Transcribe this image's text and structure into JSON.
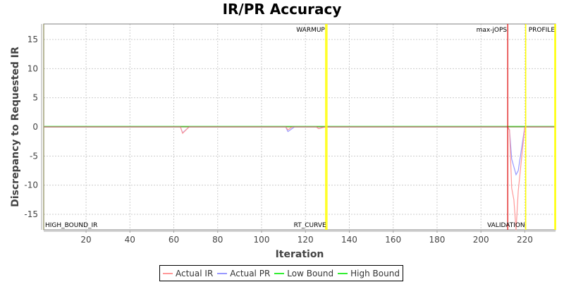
{
  "chart_data": {
    "type": "line",
    "title": "IR/PR Accuracy",
    "xlabel": "Iteration",
    "ylabel": "Discrepancy to Requested IR",
    "xlim": [
      0.7,
      234
    ],
    "ylim": [
      -17.66,
      17.66
    ],
    "x_ticks": [
      20,
      40,
      60,
      80,
      100,
      120,
      140,
      160,
      180,
      200,
      220
    ],
    "y_ticks": [
      -15,
      -10,
      -5,
      0,
      5,
      10,
      15
    ],
    "grid": true,
    "legend_position": "bottom",
    "series": [
      {
        "name": "Actual IR",
        "color": "#ff9999",
        "points": [
          [
            1,
            0
          ],
          [
            63,
            0
          ],
          [
            64,
            -1.1
          ],
          [
            67,
            0
          ],
          [
            111,
            0
          ],
          [
            112,
            -0.5
          ],
          [
            114,
            0
          ],
          [
            125,
            0
          ],
          [
            126,
            -0.3
          ],
          [
            129,
            0
          ],
          [
            212,
            0
          ],
          [
            213,
            -0.5
          ],
          [
            214,
            -10.5
          ],
          [
            215,
            -12.5
          ],
          [
            216,
            -17.7
          ],
          [
            217,
            -11
          ],
          [
            220,
            0
          ],
          [
            234,
            0
          ]
        ]
      },
      {
        "name": "Actual PR",
        "color": "#9999ff",
        "points": [
          [
            1,
            0
          ],
          [
            63,
            0
          ],
          [
            64,
            -1.0
          ],
          [
            67,
            0
          ],
          [
            111,
            0
          ],
          [
            112,
            -0.8
          ],
          [
            115,
            0
          ],
          [
            125,
            0
          ],
          [
            126,
            -0.3
          ],
          [
            129,
            0
          ],
          [
            212,
            0
          ],
          [
            213,
            -0.5
          ],
          [
            214,
            -5.5
          ],
          [
            216,
            -8.2
          ],
          [
            217,
            -7.5
          ],
          [
            220,
            0
          ],
          [
            234,
            0
          ]
        ]
      },
      {
        "name": "Low Bound",
        "color": "#33ee33",
        "points": [
          [
            1,
            0
          ],
          [
            234,
            0
          ]
        ]
      },
      {
        "name": "High Bound",
        "color": "#33ee33",
        "points": [
          [
            1,
            0.1
          ],
          [
            234,
            0.1
          ]
        ]
      }
    ],
    "annotations": [
      {
        "label": "HIGH_BOUND_IR",
        "x": 0.7,
        "position": "bottom",
        "color": "#888800"
      },
      {
        "label": "WARMUP",
        "x": 129.2,
        "position": "top",
        "color": "#ffff00"
      },
      {
        "label": "RT_CURVE",
        "x": 129.8,
        "position": "bottom",
        "color": "#ffff00"
      },
      {
        "label": "max-jOPS",
        "x": 212.2,
        "position": "top",
        "color": "#dd0000"
      },
      {
        "label": "VALIDATION",
        "x": 220.4,
        "position": "bottom",
        "color": "#ffff00"
      },
      {
        "label": "PROFILE",
        "x": 234,
        "position": "top",
        "color": "#ffff00"
      }
    ]
  },
  "legend": {
    "items": [
      {
        "label": "Actual IR",
        "color": "#ff9999"
      },
      {
        "label": "Actual PR",
        "color": "#9999ff"
      },
      {
        "label": "Low Bound",
        "color": "#33ee33"
      },
      {
        "label": "High Bound",
        "color": "#33ee33"
      }
    ]
  }
}
